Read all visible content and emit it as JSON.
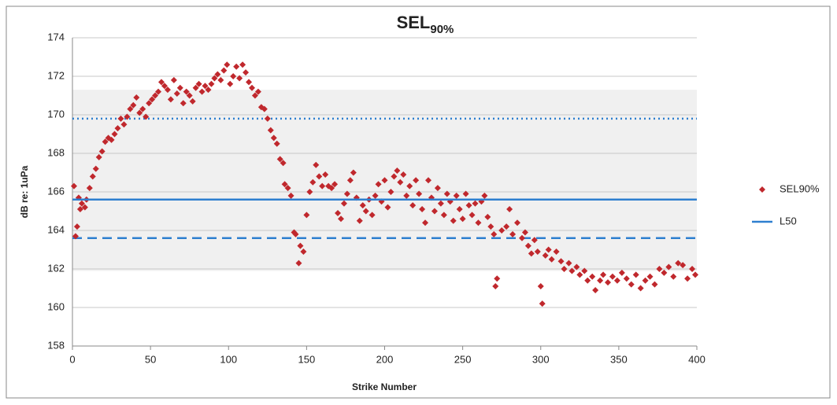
{
  "chart_data": {
    "type": "scatter",
    "title": "SEL",
    "title_subscript": "90%",
    "x_label": "Strike Number",
    "y_label": "dB re: 1uPa",
    "xlim": [
      0,
      400
    ],
    "ylim": [
      158,
      174
    ],
    "xticks": [
      0,
      50,
      100,
      150,
      200,
      250,
      300,
      350,
      400
    ],
    "yticks": [
      158,
      160,
      162,
      164,
      166,
      168,
      170,
      172,
      174
    ],
    "grid": true,
    "legend": "right",
    "band": [
      161.9,
      171.3
    ],
    "band_color": "#f0f0f0",
    "reference_lines": [
      {
        "value": 169.8,
        "dash": "dotted",
        "color": "#2e7fcf"
      },
      {
        "value": 163.6,
        "dash": "dashed",
        "color": "#2e7fcf"
      }
    ],
    "series": [
      {
        "name": "SEL90%",
        "color": "#c0282d",
        "x": [
          1,
          2,
          3,
          4,
          5,
          6,
          8,
          9,
          11,
          13,
          15,
          17,
          19,
          21,
          23,
          25,
          27,
          29,
          31,
          33,
          35,
          37,
          39,
          41,
          43,
          45,
          47,
          49,
          51,
          53,
          55,
          57,
          59,
          61,
          63,
          65,
          67,
          69,
          71,
          73,
          75,
          77,
          79,
          81,
          83,
          85,
          87,
          89,
          91,
          93,
          95,
          97,
          99,
          101,
          103,
          105,
          107,
          109,
          111,
          113,
          115,
          117,
          119,
          121,
          123,
          125,
          127,
          129,
          131,
          133,
          135,
          136,
          138,
          140,
          142,
          143,
          145,
          146,
          148,
          150,
          152,
          154,
          156,
          158,
          160,
          162,
          164,
          166,
          168,
          170,
          172,
          174,
          176,
          178,
          180,
          182,
          184,
          186,
          188,
          190,
          192,
          194,
          196,
          198,
          200,
          202,
          204,
          206,
          208,
          210,
          212,
          214,
          216,
          218,
          220,
          222,
          224,
          226,
          228,
          230,
          232,
          234,
          236,
          238,
          240,
          242,
          244,
          246,
          248,
          250,
          252,
          254,
          256,
          258,
          260,
          262,
          264,
          266,
          268,
          270,
          271,
          272,
          275,
          278,
          280,
          282,
          285,
          288,
          290,
          292,
          294,
          296,
          298,
          300,
          301,
          303,
          305,
          307,
          310,
          313,
          315,
          318,
          320,
          323,
          325,
          328,
          330,
          333,
          335,
          338,
          340,
          343,
          346,
          349,
          352,
          355,
          358,
          361,
          364,
          367,
          370,
          373,
          376,
          379,
          382,
          385,
          388,
          391,
          394,
          397,
          399
        ],
        "y": [
          166.3,
          163.7,
          164.2,
          165.7,
          165.1,
          165.4,
          165.2,
          165.6,
          166.2,
          166.8,
          167.2,
          167.8,
          168.1,
          168.6,
          168.8,
          168.7,
          169.0,
          169.3,
          169.8,
          169.5,
          169.9,
          170.3,
          170.5,
          170.9,
          170.1,
          170.3,
          169.9,
          170.6,
          170.8,
          171.0,
          171.2,
          171.7,
          171.5,
          171.3,
          170.8,
          171.8,
          171.1,
          171.4,
          170.6,
          171.2,
          171.0,
          170.7,
          171.4,
          171.6,
          171.2,
          171.5,
          171.3,
          171.6,
          171.9,
          172.1,
          171.8,
          172.3,
          172.6,
          171.6,
          172.0,
          172.5,
          171.9,
          172.6,
          172.2,
          171.7,
          171.4,
          171.0,
          171.2,
          170.4,
          170.3,
          169.8,
          169.2,
          168.8,
          168.5,
          167.7,
          167.5,
          166.4,
          166.2,
          165.8,
          163.9,
          163.8,
          162.3,
          163.2,
          162.9,
          164.8,
          166.0,
          166.5,
          167.4,
          166.8,
          166.3,
          166.9,
          166.3,
          166.2,
          166.4,
          164.9,
          164.6,
          165.4,
          165.9,
          166.6,
          167.0,
          165.7,
          164.5,
          165.3,
          165.0,
          165.6,
          164.8,
          165.8,
          166.4,
          165.5,
          166.6,
          165.2,
          166.0,
          166.8,
          167.1,
          166.5,
          166.9,
          165.8,
          166.3,
          165.3,
          166.6,
          165.9,
          165.1,
          164.4,
          166.6,
          165.7,
          165.0,
          166.2,
          165.4,
          164.8,
          165.9,
          165.5,
          164.5,
          165.8,
          165.1,
          164.6,
          165.9,
          165.3,
          164.8,
          165.4,
          164.4,
          165.5,
          165.8,
          164.7,
          164.2,
          163.8,
          161.1,
          161.5,
          164.0,
          164.2,
          165.1,
          163.8,
          164.4,
          163.6,
          163.9,
          163.2,
          162.8,
          163.5,
          162.9,
          161.1,
          160.2,
          162.7,
          163.0,
          162.5,
          162.9,
          162.4,
          162.0,
          162.3,
          161.9,
          162.1,
          161.7,
          161.9,
          161.4,
          161.6,
          160.9,
          161.4,
          161.7,
          161.3,
          161.6,
          161.4,
          161.8,
          161.5,
          161.2,
          161.7,
          161.0,
          161.4,
          161.6,
          161.2,
          162.0,
          161.8,
          162.1,
          161.6,
          162.3,
          162.2,
          161.5,
          162.0,
          161.7
        ]
      },
      {
        "name": "L50",
        "type": "hline",
        "color": "#2e7fcf",
        "value": 165.6
      }
    ]
  }
}
